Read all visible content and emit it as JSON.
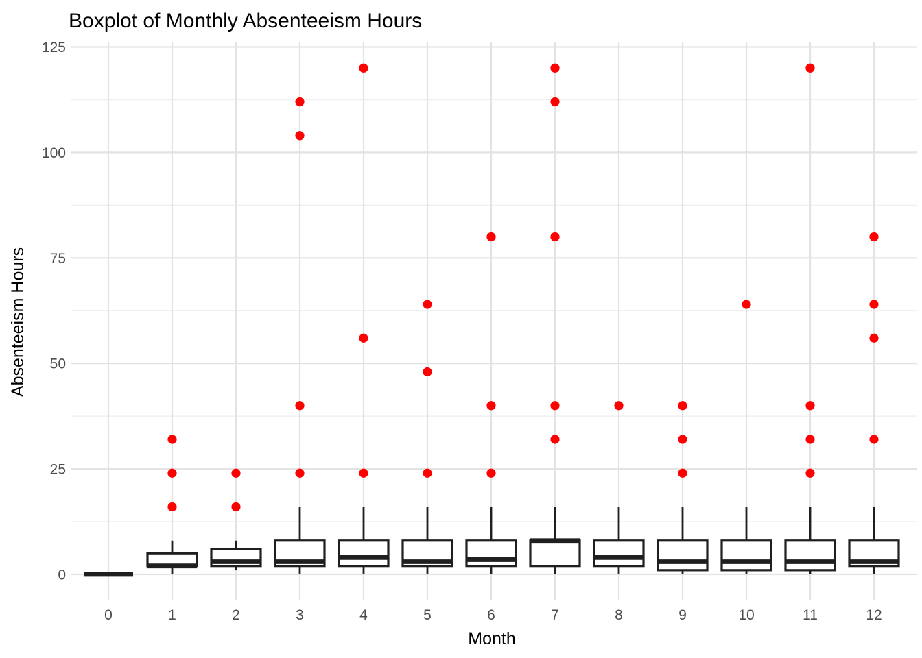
{
  "page": {
    "title": "Boxplot of Monthly Absenteeism Hours"
  },
  "chart_data": {
    "type": "boxplot",
    "title": "Boxplot of Monthly Absenteeism Hours",
    "xlabel": "Month",
    "ylabel": "Absenteeism Hours",
    "x_tick_labels": [
      "0",
      "1",
      "2",
      "3",
      "4",
      "5",
      "6",
      "7",
      "8",
      "9",
      "10",
      "11",
      "12"
    ],
    "y_tick_values": [
      0,
      25,
      50,
      75,
      100,
      125
    ],
    "y_minor_tick_values": [
      12.5,
      37.5,
      62.5,
      87.5,
      112.5
    ],
    "ylim": [
      -6,
      126
    ],
    "grid": {
      "horizontal_major": true,
      "horizontal_minor": true,
      "vertical_per_month": true
    },
    "legend": "none",
    "colors": {
      "outlier_point": "#FF0000",
      "box_border": "#1F1F1F",
      "box_fill": "#FFFFFF",
      "grid_major": "#E3E3E3",
      "grid_minor": "#F0F0F0",
      "axis_text": "#4D4D4D",
      "title_text": "#000000",
      "background": "#FFFFFF"
    },
    "boxes": [
      {
        "month": "0",
        "whisker_low": 0,
        "q1": 0,
        "median": 0,
        "q3": 0,
        "whisker_high": 0,
        "outliers": []
      },
      {
        "month": "1",
        "whisker_low": 0,
        "q1": 2,
        "median": 2,
        "q3": 5,
        "whisker_high": 8,
        "outliers": [
          16,
          24,
          32
        ]
      },
      {
        "month": "2",
        "whisker_low": 1,
        "q1": 2,
        "median": 3,
        "q3": 6,
        "whisker_high": 8,
        "outliers": [
          16,
          24
        ]
      },
      {
        "month": "3",
        "whisker_low": 0,
        "q1": 2,
        "median": 3,
        "q3": 8,
        "whisker_high": 16,
        "outliers": [
          24,
          40,
          104,
          112
        ]
      },
      {
        "month": "4",
        "whisker_low": 0,
        "q1": 2,
        "median": 4,
        "q3": 8,
        "whisker_high": 16,
        "outliers": [
          24,
          56,
          120
        ]
      },
      {
        "month": "5",
        "whisker_low": 0,
        "q1": 2,
        "median": 3,
        "q3": 8,
        "whisker_high": 16,
        "outliers": [
          24,
          48,
          64
        ]
      },
      {
        "month": "6",
        "whisker_low": 0,
        "q1": 2,
        "median": 3.5,
        "q3": 8,
        "whisker_high": 16,
        "outliers": [
          24,
          40,
          80
        ]
      },
      {
        "month": "7",
        "whisker_low": 0,
        "q1": 2,
        "median": 8,
        "q3": 8,
        "whisker_high": 16,
        "outliers": [
          32,
          40,
          80,
          112,
          120
        ]
      },
      {
        "month": "8",
        "whisker_low": 0,
        "q1": 2,
        "median": 4,
        "q3": 8,
        "whisker_high": 16,
        "outliers": [
          40
        ]
      },
      {
        "month": "9",
        "whisker_low": 0,
        "q1": 1,
        "median": 3,
        "q3": 8,
        "whisker_high": 16,
        "outliers": [
          24,
          32,
          40
        ]
      },
      {
        "month": "10",
        "whisker_low": 0,
        "q1": 1,
        "median": 3,
        "q3": 8,
        "whisker_high": 16,
        "outliers": [
          64
        ]
      },
      {
        "month": "11",
        "whisker_low": 0,
        "q1": 1,
        "median": 3,
        "q3": 8,
        "whisker_high": 16,
        "outliers": [
          24,
          32,
          40,
          120
        ]
      },
      {
        "month": "12",
        "whisker_low": 0,
        "q1": 2,
        "median": 3,
        "q3": 8,
        "whisker_high": 16,
        "outliers": [
          32,
          56,
          64,
          80
        ]
      }
    ]
  }
}
